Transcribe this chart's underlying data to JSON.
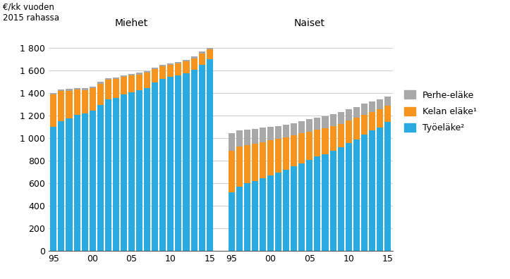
{
  "title_left": "€/kk vuoden\n2015 rahassa",
  "label_men": "Miehet",
  "label_women": "Naiset",
  "years": [
    1995,
    1996,
    1997,
    1998,
    1999,
    2000,
    2001,
    2002,
    2003,
    2004,
    2005,
    2006,
    2007,
    2008,
    2009,
    2010,
    2011,
    2012,
    2013,
    2014,
    2015
  ],
  "men_tyoelake": [
    1100,
    1150,
    1175,
    1205,
    1215,
    1240,
    1290,
    1340,
    1355,
    1385,
    1405,
    1425,
    1445,
    1490,
    1520,
    1540,
    1555,
    1575,
    1605,
    1650,
    1695
  ],
  "men_kelan_elake": [
    285,
    265,
    245,
    225,
    210,
    200,
    190,
    175,
    165,
    155,
    148,
    138,
    132,
    120,
    112,
    108,
    105,
    102,
    100,
    98,
    90
  ],
  "men_perhe_elake": [
    15,
    15,
    15,
    15,
    15,
    15,
    15,
    15,
    15,
    15,
    15,
    15,
    15,
    15,
    15,
    15,
    15,
    15,
    15,
    15,
    15
  ],
  "women_tyoelake": [
    520,
    570,
    600,
    620,
    645,
    670,
    695,
    720,
    748,
    775,
    805,
    835,
    858,
    888,
    918,
    955,
    990,
    1030,
    1065,
    1095,
    1140
  ],
  "women_kelan_elake": [
    370,
    355,
    340,
    330,
    320,
    308,
    298,
    285,
    275,
    265,
    253,
    240,
    230,
    218,
    208,
    198,
    188,
    178,
    168,
    158,
    145
  ],
  "women_perhe_elake": [
    150,
    140,
    135,
    130,
    125,
    120,
    115,
    110,
    108,
    107,
    107,
    107,
    103,
    103,
    103,
    100,
    98,
    95,
    93,
    90,
    85
  ],
  "color_tyoelake": "#29ABE2",
  "color_kelan_elake": "#F7941D",
  "color_perhe_elake": "#A8A8A8",
  "ylim": [
    0,
    1900
  ],
  "yticks": [
    0,
    200,
    400,
    600,
    800,
    1000,
    1200,
    1400,
    1600,
    1800
  ],
  "ytick_labels": [
    "0",
    "200",
    "400",
    "600",
    "800",
    "1 000",
    "1 200",
    "1 400",
    "1 600",
    "1 800"
  ],
  "legend_labels": [
    "Perhe-eläke",
    "Kelan eläke¹",
    "Työeläke²"
  ],
  "xtick_labels": [
    "95",
    "00",
    "05",
    "10",
    "15",
    "95",
    "00",
    "05",
    "10",
    "15"
  ]
}
